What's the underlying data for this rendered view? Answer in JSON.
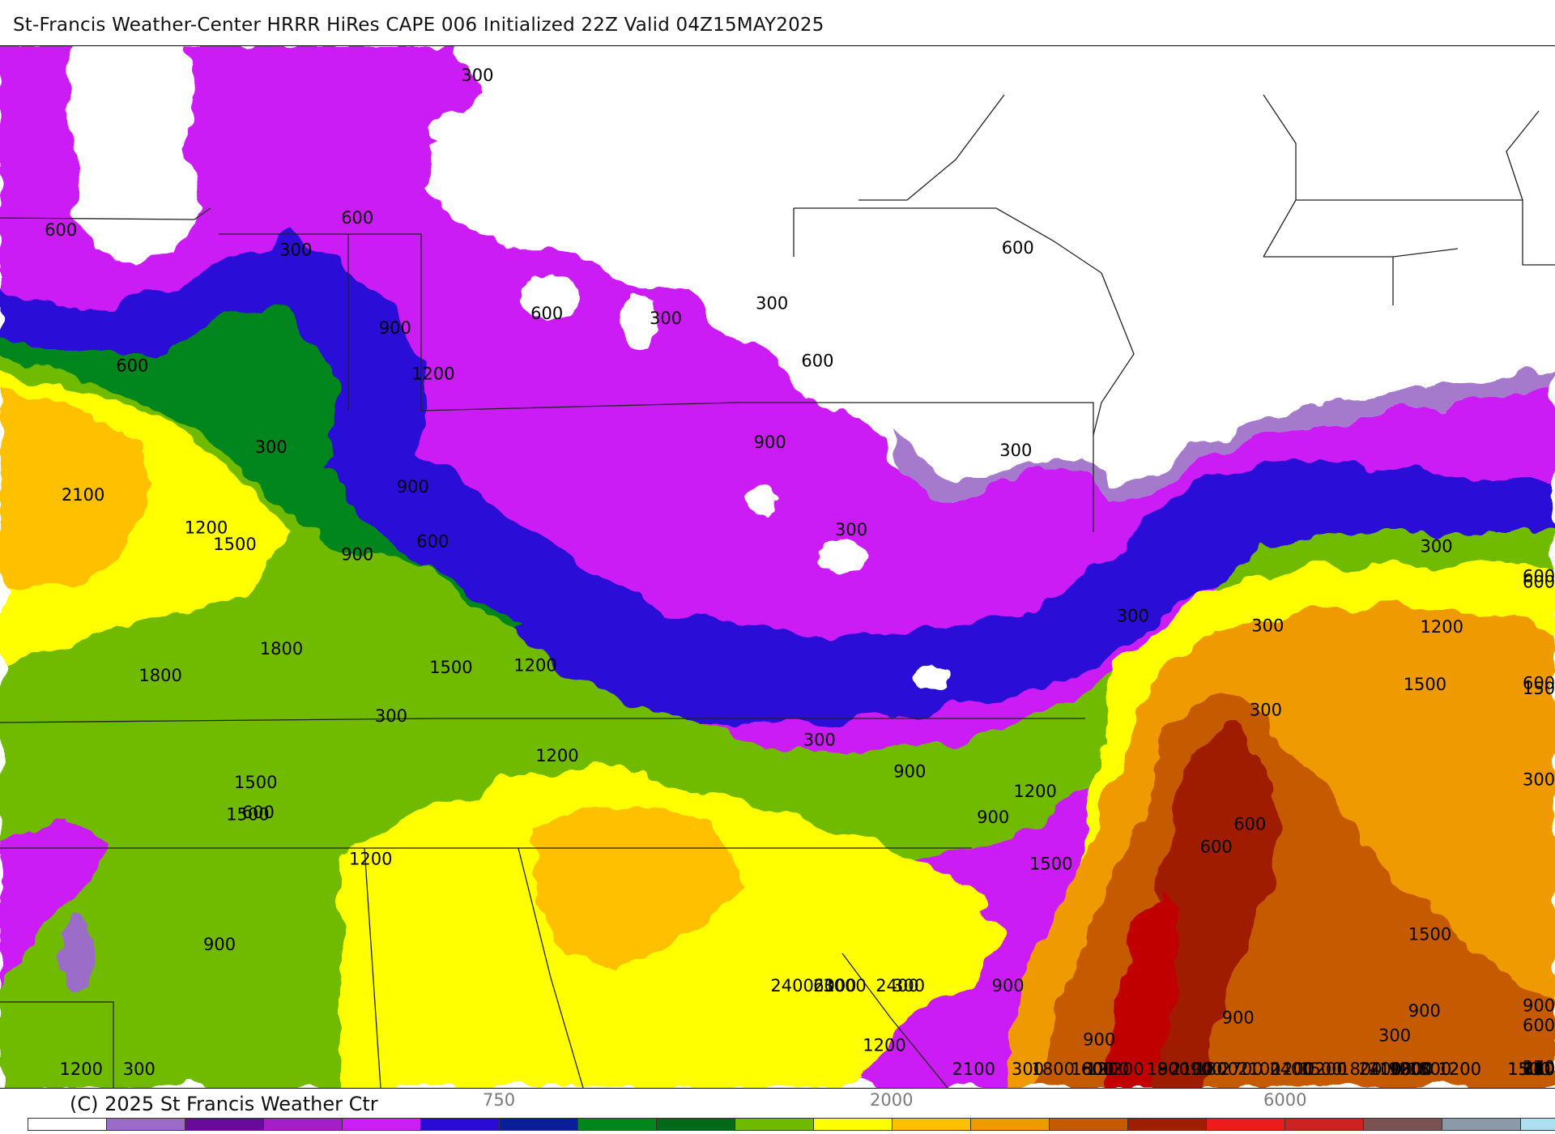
{
  "header": {
    "title": "St-Francis Weather-Center HRRR HiRes CAPE  006 Initialized  22Z Valid 04Z15MAY2025"
  },
  "footer": {
    "copyright": "(C) 2025 St Francis Weather Ctr"
  },
  "colorbar": {
    "colors": [
      "#ffffff",
      "#9b6cc8",
      "#6a0a9a",
      "#a51fc9",
      "#cc1ff5",
      "#2a0ad6",
      "#0a1e9a",
      "#00861a",
      "#006a1a",
      "#6fba00",
      "#ffff00",
      "#ffc000",
      "#ee9a00",
      "#c65a00",
      "#a01e00",
      "#ee1b1b",
      "#cc2222",
      "#7a5252",
      "#8a9aa8",
      "#aee0ef"
    ],
    "tick_labels": [
      "750",
      "2000",
      "6000"
    ]
  },
  "map": {
    "field": "CAPE",
    "palette": {
      "land_blank": "#ffffff",
      "lavender": "#9b6cc8",
      "magenta": "#cc1ff5",
      "blue": "#2a0ad6",
      "dark_green": "#00861a",
      "green": "#6fba00",
      "yellow": "#ffff00",
      "light_orange": "#ffc000",
      "orange": "#ee9a00",
      "rust": "#c65a00",
      "dark_red": "#a01e00",
      "red": "#c00000"
    },
    "contour_labels": [
      "300",
      "600",
      "300",
      "600",
      "900",
      "600",
      "300",
      "1200",
      "600",
      "300",
      "600",
      "300",
      "600",
      "900",
      "2100",
      "1200",
      "1500",
      "900",
      "600",
      "900",
      "300",
      "300",
      "300",
      "300",
      "300",
      "600",
      "600",
      "1800",
      "1800",
      "1500",
      "1200",
      "1500",
      "600",
      "300",
      "1200",
      "300",
      "1200",
      "900",
      "1500",
      "1500",
      "600",
      "300",
      "300",
      "900",
      "600",
      "600",
      "1500",
      "1200",
      "1200",
      "1500",
      "900",
      "900",
      "900",
      "1200",
      "1200",
      "900",
      "1200",
      "1800",
      "1200",
      "1800",
      "900",
      "300",
      "1500",
      "1200",
      "900",
      "600",
      "1200",
      "900",
      "1800",
      "1500",
      "1200",
      "600",
      "2100",
      "2700",
      "1800",
      "1500",
      "1200",
      "1800",
      "2100",
      "2700",
      "2400",
      "2100",
      "900",
      "1500",
      "1800",
      "1200",
      "2100",
      "2400",
      "2100",
      "1500",
      "2100",
      "1800",
      "1800",
      "2100",
      "2400",
      "2100",
      "1200",
      "300",
      "300",
      "1800",
      "1500",
      "2100",
      "2100",
      "600",
      "300",
      "1200",
      "900",
      "600",
      "1500",
      "2400",
      "3000",
      "2400"
    ]
  }
}
